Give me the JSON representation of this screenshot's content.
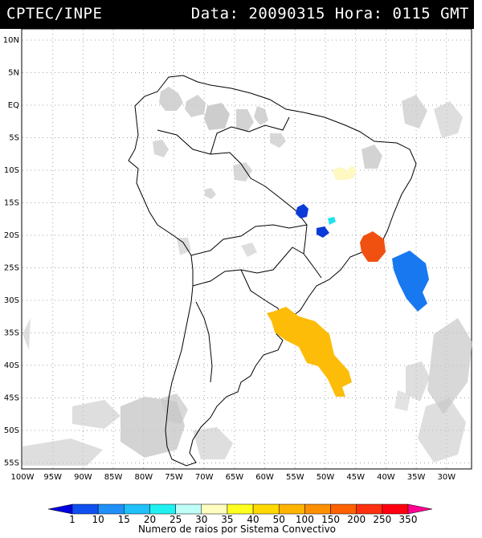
{
  "header": {
    "source": "CPTEC/INPE",
    "date_time": "Data: 20090315 Hora: 0115 GMT"
  },
  "map": {
    "lat_labels": [
      "10N",
      "5N",
      "EQ",
      "5S",
      "10S",
      "15S",
      "20S",
      "25S",
      "30S",
      "35S",
      "40S",
      "45S",
      "50S",
      "55S"
    ],
    "lon_labels": [
      "100W",
      "95W",
      "90W",
      "85W",
      "80W",
      "75W",
      "70W",
      "65W",
      "60W",
      "55W",
      "50W",
      "45W",
      "40W",
      "35W",
      "30W"
    ],
    "region": "South America",
    "clusters": [
      {
        "label": "35-40",
        "color": "#ffffa0"
      },
      {
        "label": "1",
        "color": "#0a3ad8"
      },
      {
        "label": "20-25",
        "color": "#22e0f0"
      },
      {
        "label": "1",
        "color": "#0a3ad8"
      },
      {
        "label": "200-250",
        "color": "#f05010"
      },
      {
        "label": "10-15",
        "color": "#1878f0"
      },
      {
        "label": "100-150",
        "color": "#fcbc08"
      }
    ]
  },
  "legend": {
    "title": "Numero de raios por Sistema Convectivo",
    "tick_labels": [
      "1",
      "10",
      "15",
      "20",
      "25",
      "30",
      "35",
      "40",
      "50",
      "100",
      "150",
      "200",
      "250",
      "350"
    ],
    "colors": [
      "#0000e0",
      "#1050f0",
      "#2090f8",
      "#20c0f8",
      "#20f0f0",
      "#c0fff8",
      "#fffdc0",
      "#ffff20",
      "#ffd800",
      "#ffb400",
      "#ff9000",
      "#ff6000",
      "#ff3010",
      "#ff0010",
      "#ff0090"
    ]
  }
}
